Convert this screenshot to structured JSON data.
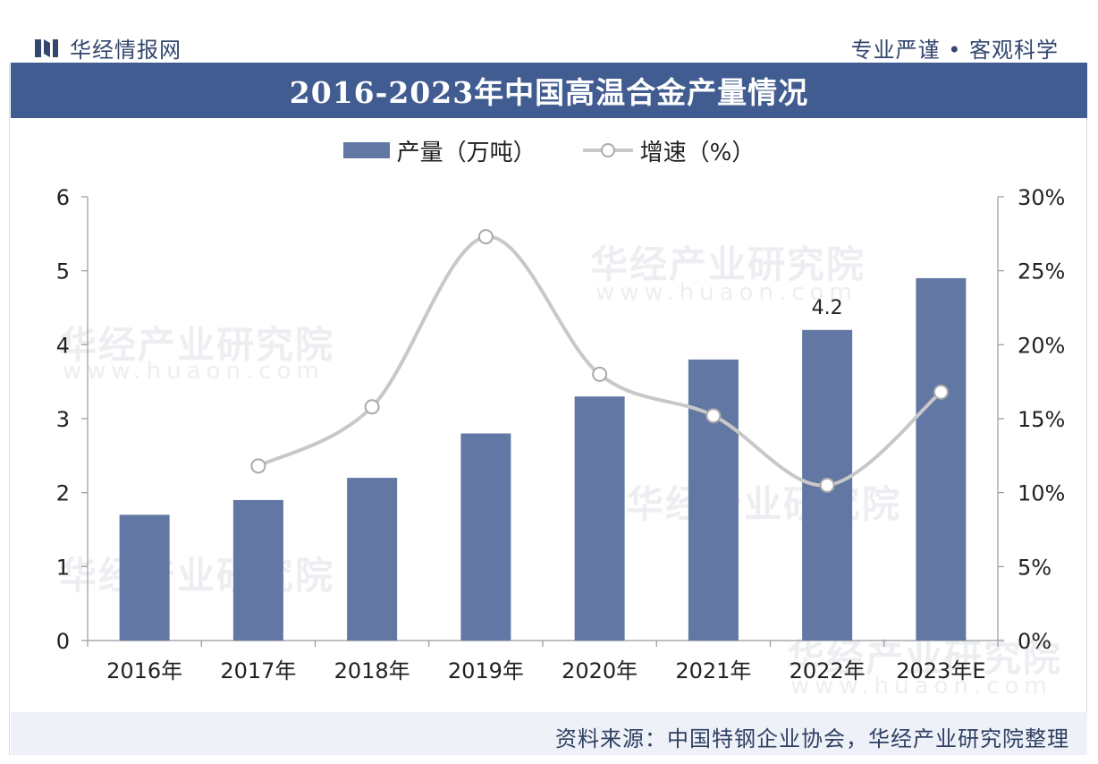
{
  "header": {
    "brand_name": "华经情报网",
    "tagline": "专业严谨 • 客观科学"
  },
  "title": "2016-2023年中国高温合金产量情况",
  "legend": {
    "bar_label": "产量（万吨）",
    "line_label": "增速（%）"
  },
  "footer": {
    "source": "资料来源：中国特钢企业协会，华经产业研究院整理"
  },
  "watermark": {
    "text": "华经产业研究院",
    "url": "www.huaon.com"
  },
  "colors": {
    "bar": "#6277a3",
    "line": "#c8c8c8",
    "title_band": "#415c91",
    "brand_text": "#33466e"
  },
  "chart_data": {
    "type": "bar",
    "categories": [
      "2016年",
      "2017年",
      "2018年",
      "2019年",
      "2020年",
      "2021年",
      "2022年",
      "2023年E"
    ],
    "series": [
      {
        "name": "产量（万吨）",
        "type": "bar",
        "axis": "left",
        "values": [
          1.7,
          1.9,
          2.2,
          2.8,
          3.3,
          3.8,
          4.2,
          4.9
        ]
      },
      {
        "name": "增速（%）",
        "type": "line",
        "axis": "right",
        "values": [
          null,
          11.8,
          15.8,
          27.3,
          18.0,
          15.2,
          10.5,
          16.8
        ]
      }
    ],
    "data_labels": [
      {
        "category": "2022年",
        "text": "4.2"
      }
    ],
    "y_left": {
      "ylim": [
        0,
        6
      ],
      "ticks": [
        "0",
        "1",
        "2",
        "3",
        "4",
        "5",
        "6"
      ]
    },
    "y_right": {
      "ylim": [
        0,
        30
      ],
      "ticks": [
        "0%",
        "5%",
        "10%",
        "15%",
        "20%",
        "25%",
        "30%"
      ]
    },
    "grid": false,
    "legend_position": "top-center"
  }
}
